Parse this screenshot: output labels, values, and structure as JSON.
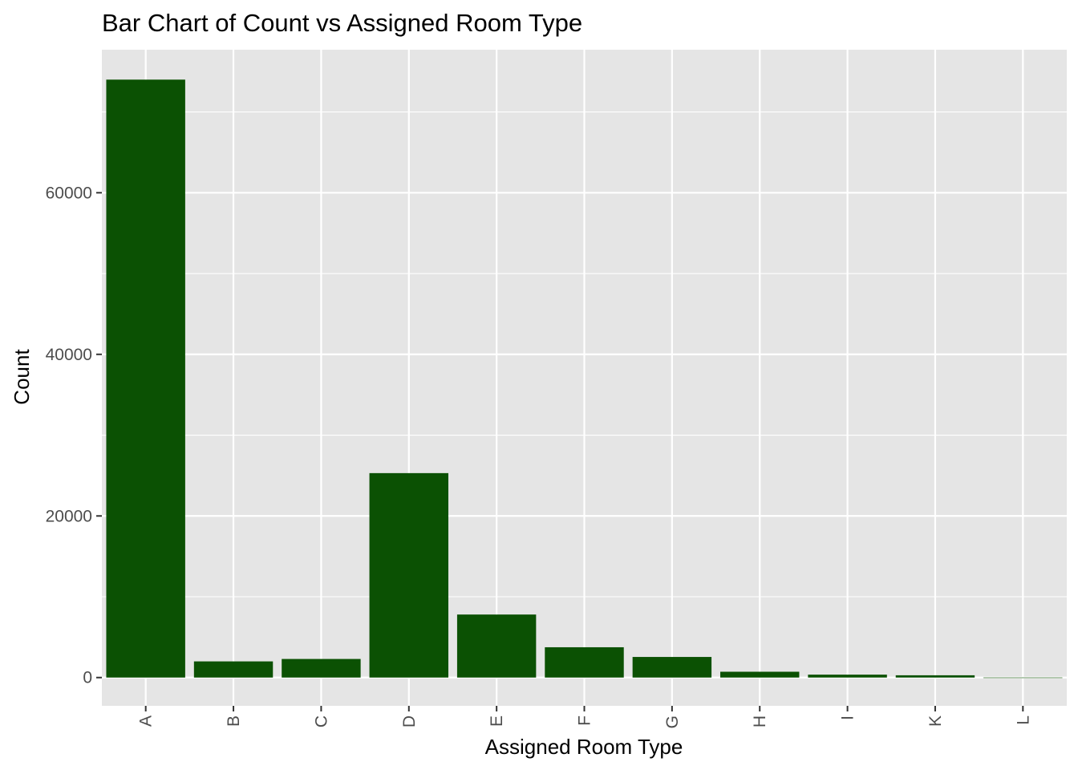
{
  "chart_data": {
    "type": "bar",
    "title": "Bar Chart of Count vs Assigned Room Type",
    "xlabel": "Assigned Room Type",
    "ylabel": "Count",
    "categories": [
      "A",
      "B",
      "C",
      "D",
      "E",
      "F",
      "G",
      "H",
      "I",
      "K",
      "L"
    ],
    "values": [
      74000,
      2000,
      2300,
      25300,
      7800,
      3750,
      2550,
      720,
      360,
      280,
      6
    ],
    "ylim": [
      -3500,
      77700
    ],
    "yticks": [
      0,
      20000,
      40000,
      60000
    ],
    "ytick_labels": [
      "0",
      "20000",
      "40000",
      "60000"
    ],
    "grid": true,
    "legend": "none",
    "colors": {
      "bar": "#0b5103",
      "panel": "#e5e5e5",
      "grid": "#ffffff",
      "tick_text": "#4d4d4d",
      "tick_mark": "#333333"
    }
  }
}
